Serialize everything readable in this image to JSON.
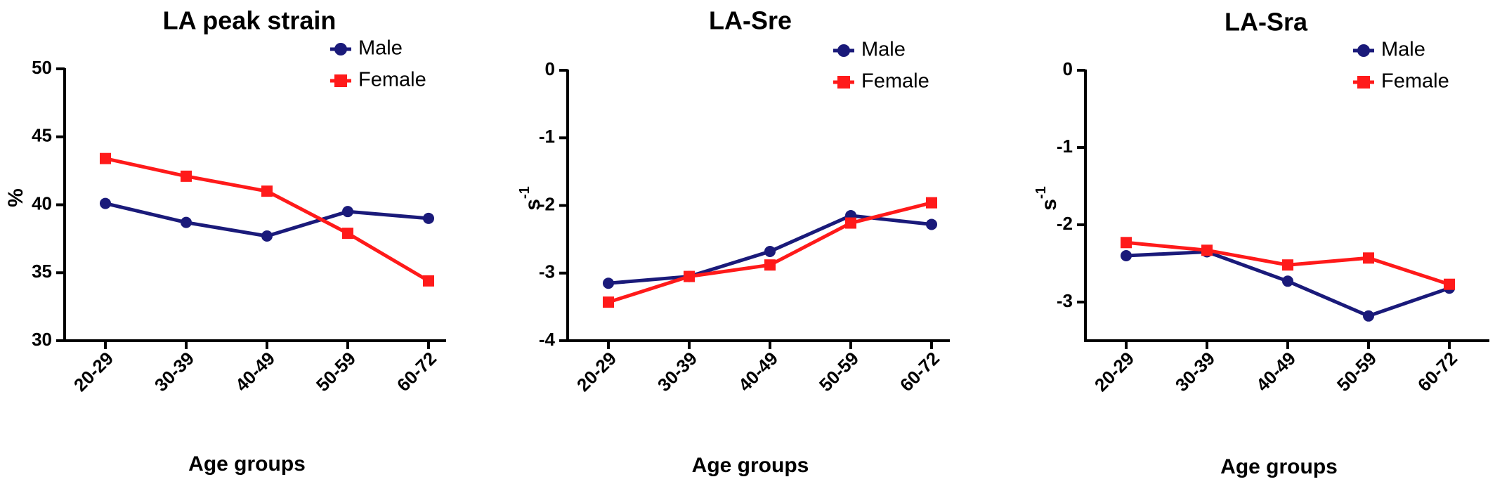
{
  "chart_data": [
    {
      "type": "line",
      "title": "LA peak strain",
      "xlabel": "Age groups",
      "ylabel": "%",
      "categories": [
        "20-29",
        "30-39",
        "40-49",
        "50-59",
        "60-72"
      ],
      "ylim": [
        30,
        50
      ],
      "yticks": [
        30,
        35,
        40,
        45,
        50
      ],
      "legend": "top-right",
      "series": [
        {
          "name": "Male",
          "color": "#1a1a7a",
          "marker": "circle",
          "values": [
            40.1,
            38.7,
            37.7,
            39.5,
            39.0
          ]
        },
        {
          "name": "Female",
          "color": "#ff1a1a",
          "marker": "square",
          "values": [
            43.4,
            42.1,
            41.0,
            37.9,
            34.4
          ]
        }
      ]
    },
    {
      "type": "line",
      "title": "LA-Sre",
      "xlabel": "Age groups",
      "ylabel": "s",
      "ylabel_sup": "-1",
      "categories": [
        "20-29",
        "30-39",
        "40-49",
        "50-59",
        "60-72"
      ],
      "ylim": [
        -4,
        0
      ],
      "yticks": [
        -4,
        -3,
        -2,
        -1,
        0
      ],
      "legend": "top-right",
      "series": [
        {
          "name": "Male",
          "color": "#1a1a7a",
          "marker": "circle",
          "values": [
            -3.15,
            -3.05,
            -2.68,
            -2.15,
            -2.28
          ]
        },
        {
          "name": "Female",
          "color": "#ff1a1a",
          "marker": "square",
          "values": [
            -3.43,
            -3.05,
            -2.88,
            -2.26,
            -1.96
          ]
        }
      ]
    },
    {
      "type": "line",
      "title": "LA-Sra",
      "xlabel": "Age groups",
      "ylabel": "s",
      "ylabel_sup": "-1",
      "categories": [
        "20-29",
        "30-39",
        "40-49",
        "50-59",
        "60-72"
      ],
      "ylim": [
        -3.5,
        0
      ],
      "yticks": [
        -3,
        -2,
        -1,
        0
      ],
      "legend": "top-right",
      "series": [
        {
          "name": "Male",
          "color": "#1a1a7a",
          "marker": "circle",
          "values": [
            -2.4,
            -2.35,
            -2.73,
            -3.18,
            -2.82
          ]
        },
        {
          "name": "Female",
          "color": "#ff1a1a",
          "marker": "square",
          "values": [
            -2.23,
            -2.33,
            -2.52,
            -2.43,
            -2.77
          ]
        }
      ]
    }
  ]
}
